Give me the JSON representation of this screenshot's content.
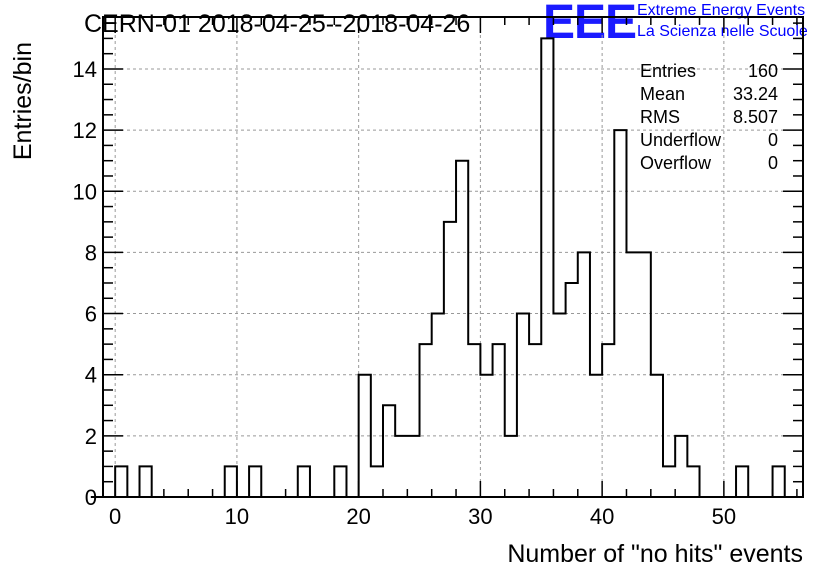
{
  "chart_data": {
    "type": "bar",
    "title": "CERN-01 2018-04-25--2018-04-26",
    "xlabel": "Number of \"no hits\" events",
    "ylabel": "Entries/bin",
    "xlim": [
      -1,
      56.5
    ],
    "ylim": [
      0,
      15.7
    ],
    "bin_width": 1,
    "xticks": [
      0,
      10,
      20,
      30,
      40,
      50
    ],
    "yticks": [
      0,
      2,
      4,
      6,
      8,
      10,
      12,
      14
    ],
    "grid": true,
    "bins": [
      {
        "x": 1,
        "count": 1
      },
      {
        "x": 3,
        "count": 1
      },
      {
        "x": 10,
        "count": 1
      },
      {
        "x": 12,
        "count": 1
      },
      {
        "x": 16,
        "count": 1
      },
      {
        "x": 19,
        "count": 1
      },
      {
        "x": 21,
        "count": 4
      },
      {
        "x": 22,
        "count": 1
      },
      {
        "x": 23,
        "count": 3
      },
      {
        "x": 24,
        "count": 2
      },
      {
        "x": 25,
        "count": 2
      },
      {
        "x": 26,
        "count": 5
      },
      {
        "x": 27,
        "count": 6
      },
      {
        "x": 28,
        "count": 9
      },
      {
        "x": 29,
        "count": 11
      },
      {
        "x": 30,
        "count": 5
      },
      {
        "x": 31,
        "count": 4
      },
      {
        "x": 32,
        "count": 5
      },
      {
        "x": 33,
        "count": 2
      },
      {
        "x": 34,
        "count": 6
      },
      {
        "x": 35,
        "count": 5
      },
      {
        "x": 36,
        "count": 15
      },
      {
        "x": 37,
        "count": 6
      },
      {
        "x": 38,
        "count": 7
      },
      {
        "x": 39,
        "count": 8
      },
      {
        "x": 40,
        "count": 4
      },
      {
        "x": 41,
        "count": 5
      },
      {
        "x": 42,
        "count": 12
      },
      {
        "x": 43,
        "count": 8
      },
      {
        "x": 44,
        "count": 8
      },
      {
        "x": 45,
        "count": 4
      },
      {
        "x": 46,
        "count": 1
      },
      {
        "x": 47,
        "count": 2
      },
      {
        "x": 48,
        "count": 1
      },
      {
        "x": 52,
        "count": 1
      },
      {
        "x": 55,
        "count": 1
      }
    ],
    "stats": [
      {
        "label": "Entries",
        "value": "160"
      },
      {
        "label": "Mean",
        "value": "33.24"
      },
      {
        "label": "RMS",
        "value": "8.507"
      },
      {
        "label": "Underflow",
        "value": "0"
      },
      {
        "label": "Overflow",
        "value": "0"
      }
    ]
  },
  "logo": {
    "mark": "EEE",
    "line1": "Extreme Energy Events",
    "line2": "La Scienza nelle Scuole",
    "color": "#0000ff"
  }
}
